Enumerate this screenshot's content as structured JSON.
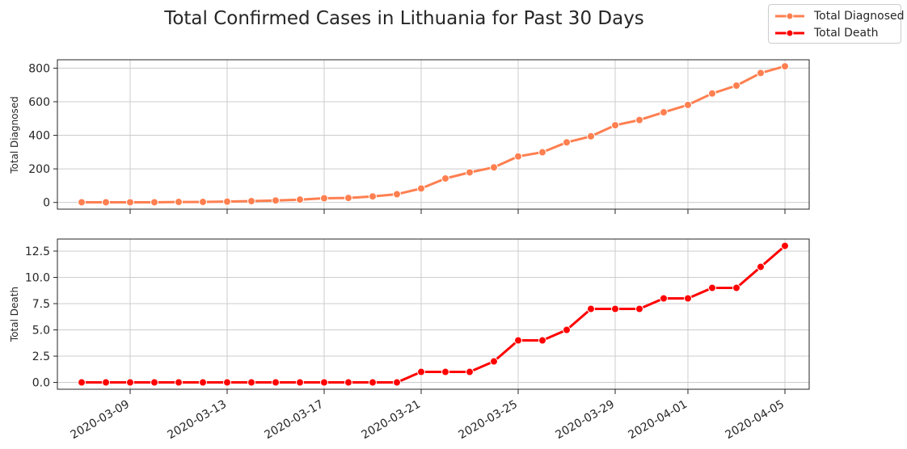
{
  "chart_data": [
    {
      "type": "line",
      "title": "Total Confirmed Cases in Lithuania for Past 30 Days",
      "ylabel": "Total Diagnosed",
      "ylim": [
        -40,
        850
      ],
      "yticks": [
        0,
        200,
        400,
        600,
        800
      ],
      "xlim": [
        "2020-03-06",
        "2020-04-06"
      ],
      "xticks": [
        "2020-03-09",
        "2020-03-13",
        "2020-03-17",
        "2020-03-21",
        "2020-03-25",
        "2020-03-29",
        "2020-04-01",
        "2020-04-05"
      ],
      "grid": true,
      "color": "#ff7f50",
      "series": [
        {
          "name": "Total Diagnosed",
          "x": [
            "2020-03-07",
            "2020-03-08",
            "2020-03-09",
            "2020-03-10",
            "2020-03-11",
            "2020-03-12",
            "2020-03-13",
            "2020-03-14",
            "2020-03-15",
            "2020-03-16",
            "2020-03-17",
            "2020-03-18",
            "2020-03-19",
            "2020-03-20",
            "2020-03-21",
            "2020-03-22",
            "2020-03-23",
            "2020-03-24",
            "2020-03-25",
            "2020-03-26",
            "2020-03-27",
            "2020-03-28",
            "2020-03-29",
            "2020-03-30",
            "2020-03-31",
            "2020-04-01",
            "2020-04-02",
            "2020-04-03",
            "2020-04-04",
            "2020-04-05"
          ],
          "values": [
            1,
            1,
            1,
            1,
            3,
            3,
            5,
            8,
            12,
            17,
            25,
            27,
            36,
            49,
            83,
            143,
            179,
            209,
            274,
            299,
            358,
            394,
            460,
            491,
            537,
            581,
            649,
            696,
            771,
            811
          ]
        }
      ]
    },
    {
      "type": "line",
      "ylabel": "Total Death",
      "ylim": [
        -0.65,
        13.65
      ],
      "yticks": [
        0.0,
        2.5,
        5.0,
        7.5,
        10.0,
        12.5
      ],
      "xlim": [
        "2020-03-06",
        "2020-04-06"
      ],
      "xticks": [
        "2020-03-09",
        "2020-03-13",
        "2020-03-17",
        "2020-03-21",
        "2020-03-25",
        "2020-03-29",
        "2020-04-01",
        "2020-04-05"
      ],
      "grid": true,
      "color": "#ff0000",
      "series": [
        {
          "name": "Total Death",
          "x": [
            "2020-03-07",
            "2020-03-08",
            "2020-03-09",
            "2020-03-10",
            "2020-03-11",
            "2020-03-12",
            "2020-03-13",
            "2020-03-14",
            "2020-03-15",
            "2020-03-16",
            "2020-03-17",
            "2020-03-18",
            "2020-03-19",
            "2020-03-20",
            "2020-03-21",
            "2020-03-22",
            "2020-03-23",
            "2020-03-24",
            "2020-03-25",
            "2020-03-26",
            "2020-03-27",
            "2020-03-28",
            "2020-03-29",
            "2020-03-30",
            "2020-03-31",
            "2020-04-01",
            "2020-04-02",
            "2020-04-03",
            "2020-04-04",
            "2020-04-05"
          ],
          "values": [
            0,
            0,
            0,
            0,
            0,
            0,
            0,
            0,
            0,
            0,
            0,
            0,
            0,
            0,
            1,
            1,
            1,
            2,
            4,
            4,
            5,
            7,
            7,
            7,
            8,
            8,
            9,
            9,
            11,
            13
          ]
        }
      ]
    }
  ],
  "legend": {
    "placement": "top-right",
    "items": [
      {
        "label": "Total Diagnosed",
        "color": "#ff7f50"
      },
      {
        "label": "Total Death",
        "color": "#ff0000"
      }
    ]
  }
}
